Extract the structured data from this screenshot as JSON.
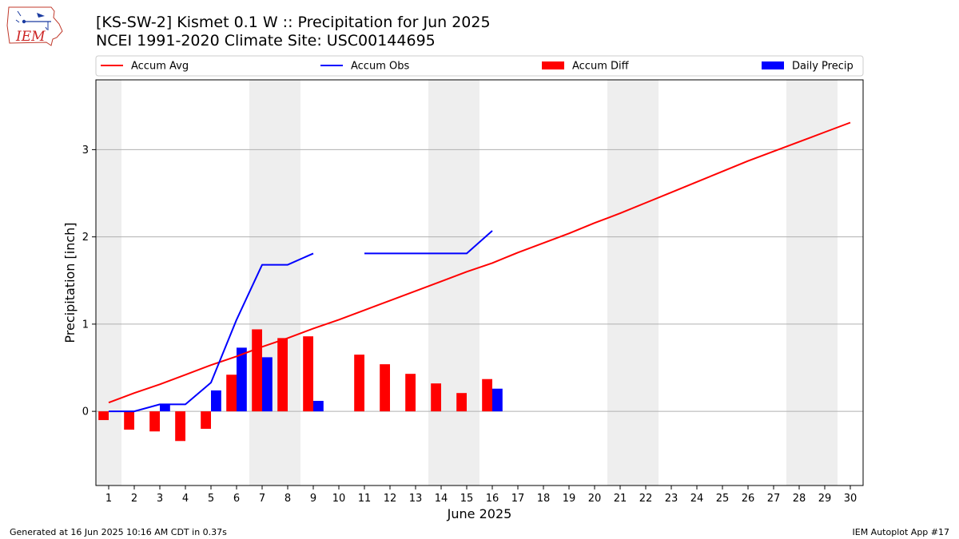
{
  "title_line1": "[KS-SW-2] Kismet 0.1 W :: Precipitation for Jun 2025",
  "title_line2": "NCEI 1991-2020 Climate Site: USC00144695",
  "logo_text": "IEM",
  "footer_left": "Generated at 16 Jun 2025 10:16 AM CDT in 0.37s",
  "footer_right": "IEM Autoplot App #17",
  "colors": {
    "avg": "#ff0000",
    "obs": "#0000ff",
    "diff": "#ff0000",
    "daily": "#0000ff",
    "weekend": "#eeeeee",
    "grid": "#b0b0b0"
  },
  "chart_data": {
    "type": "bar",
    "xlabel": "June 2025",
    "ylabel": "Precipitation [inch]",
    "xlim": [
      0.5,
      30.5
    ],
    "ylim": [
      -0.85,
      3.8
    ],
    "x_ticks": [
      1,
      2,
      3,
      4,
      5,
      6,
      7,
      8,
      9,
      10,
      11,
      12,
      13,
      14,
      15,
      16,
      17,
      18,
      19,
      20,
      21,
      22,
      23,
      24,
      25,
      26,
      27,
      28,
      29,
      30
    ],
    "y_ticks": [
      0,
      1,
      2,
      3
    ],
    "grid": "horizontal",
    "legend_position": "top",
    "legend": [
      "Accum Avg",
      "Accum Obs",
      "Accum Diff",
      "Daily Precip"
    ],
    "weekend_spans": [
      [
        0.5,
        1.5
      ],
      [
        6.5,
        8.5
      ],
      [
        13.5,
        15.5
      ],
      [
        20.5,
        22.5
      ],
      [
        27.5,
        29.5
      ]
    ],
    "accum_avg": {
      "name": "Accum Avg",
      "x": [
        1,
        2,
        3,
        4,
        5,
        6,
        7,
        8,
        9,
        10,
        11,
        12,
        13,
        14,
        15,
        16,
        17,
        18,
        19,
        20,
        21,
        22,
        23,
        24,
        25,
        26,
        27,
        28,
        29,
        30
      ],
      "y": [
        0.1,
        0.21,
        0.31,
        0.42,
        0.53,
        0.63,
        0.74,
        0.84,
        0.95,
        1.05,
        1.16,
        1.27,
        1.38,
        1.49,
        1.6,
        1.7,
        1.82,
        1.93,
        2.04,
        2.16,
        2.27,
        2.39,
        2.51,
        2.63,
        2.75,
        2.87,
        2.98,
        3.09,
        3.2,
        3.31
      ]
    },
    "accum_obs": {
      "name": "Accum Obs",
      "x": [
        1,
        2,
        3,
        4,
        5,
        6,
        7,
        8,
        9,
        10,
        11,
        12,
        13,
        14,
        15,
        16
      ],
      "y": [
        0.0,
        0.0,
        0.08,
        0.08,
        0.33,
        1.05,
        1.68,
        1.68,
        1.81,
        null,
        1.81,
        1.81,
        1.81,
        1.81,
        1.81,
        2.07
      ]
    },
    "accum_diff": {
      "name": "Accum Diff",
      "x": [
        1,
        2,
        3,
        4,
        5,
        6,
        7,
        8,
        9,
        11,
        12,
        13,
        14,
        15,
        16
      ],
      "y": [
        -0.1,
        -0.21,
        -0.23,
        -0.34,
        -0.2,
        0.42,
        0.94,
        0.84,
        0.86,
        0.65,
        0.54,
        0.43,
        0.32,
        0.21,
        0.37
      ]
    },
    "daily_precip": {
      "name": "Daily Precip",
      "x": [
        1,
        2,
        3,
        4,
        5,
        6,
        7,
        8,
        9,
        10,
        11,
        12,
        13,
        14,
        15,
        16
      ],
      "y": [
        0.0,
        0.0,
        0.08,
        0.0,
        0.24,
        0.73,
        0.62,
        0.0,
        0.12,
        0.0,
        0.0,
        0.0,
        0.0,
        0.0,
        0.0,
        0.26
      ]
    }
  }
}
